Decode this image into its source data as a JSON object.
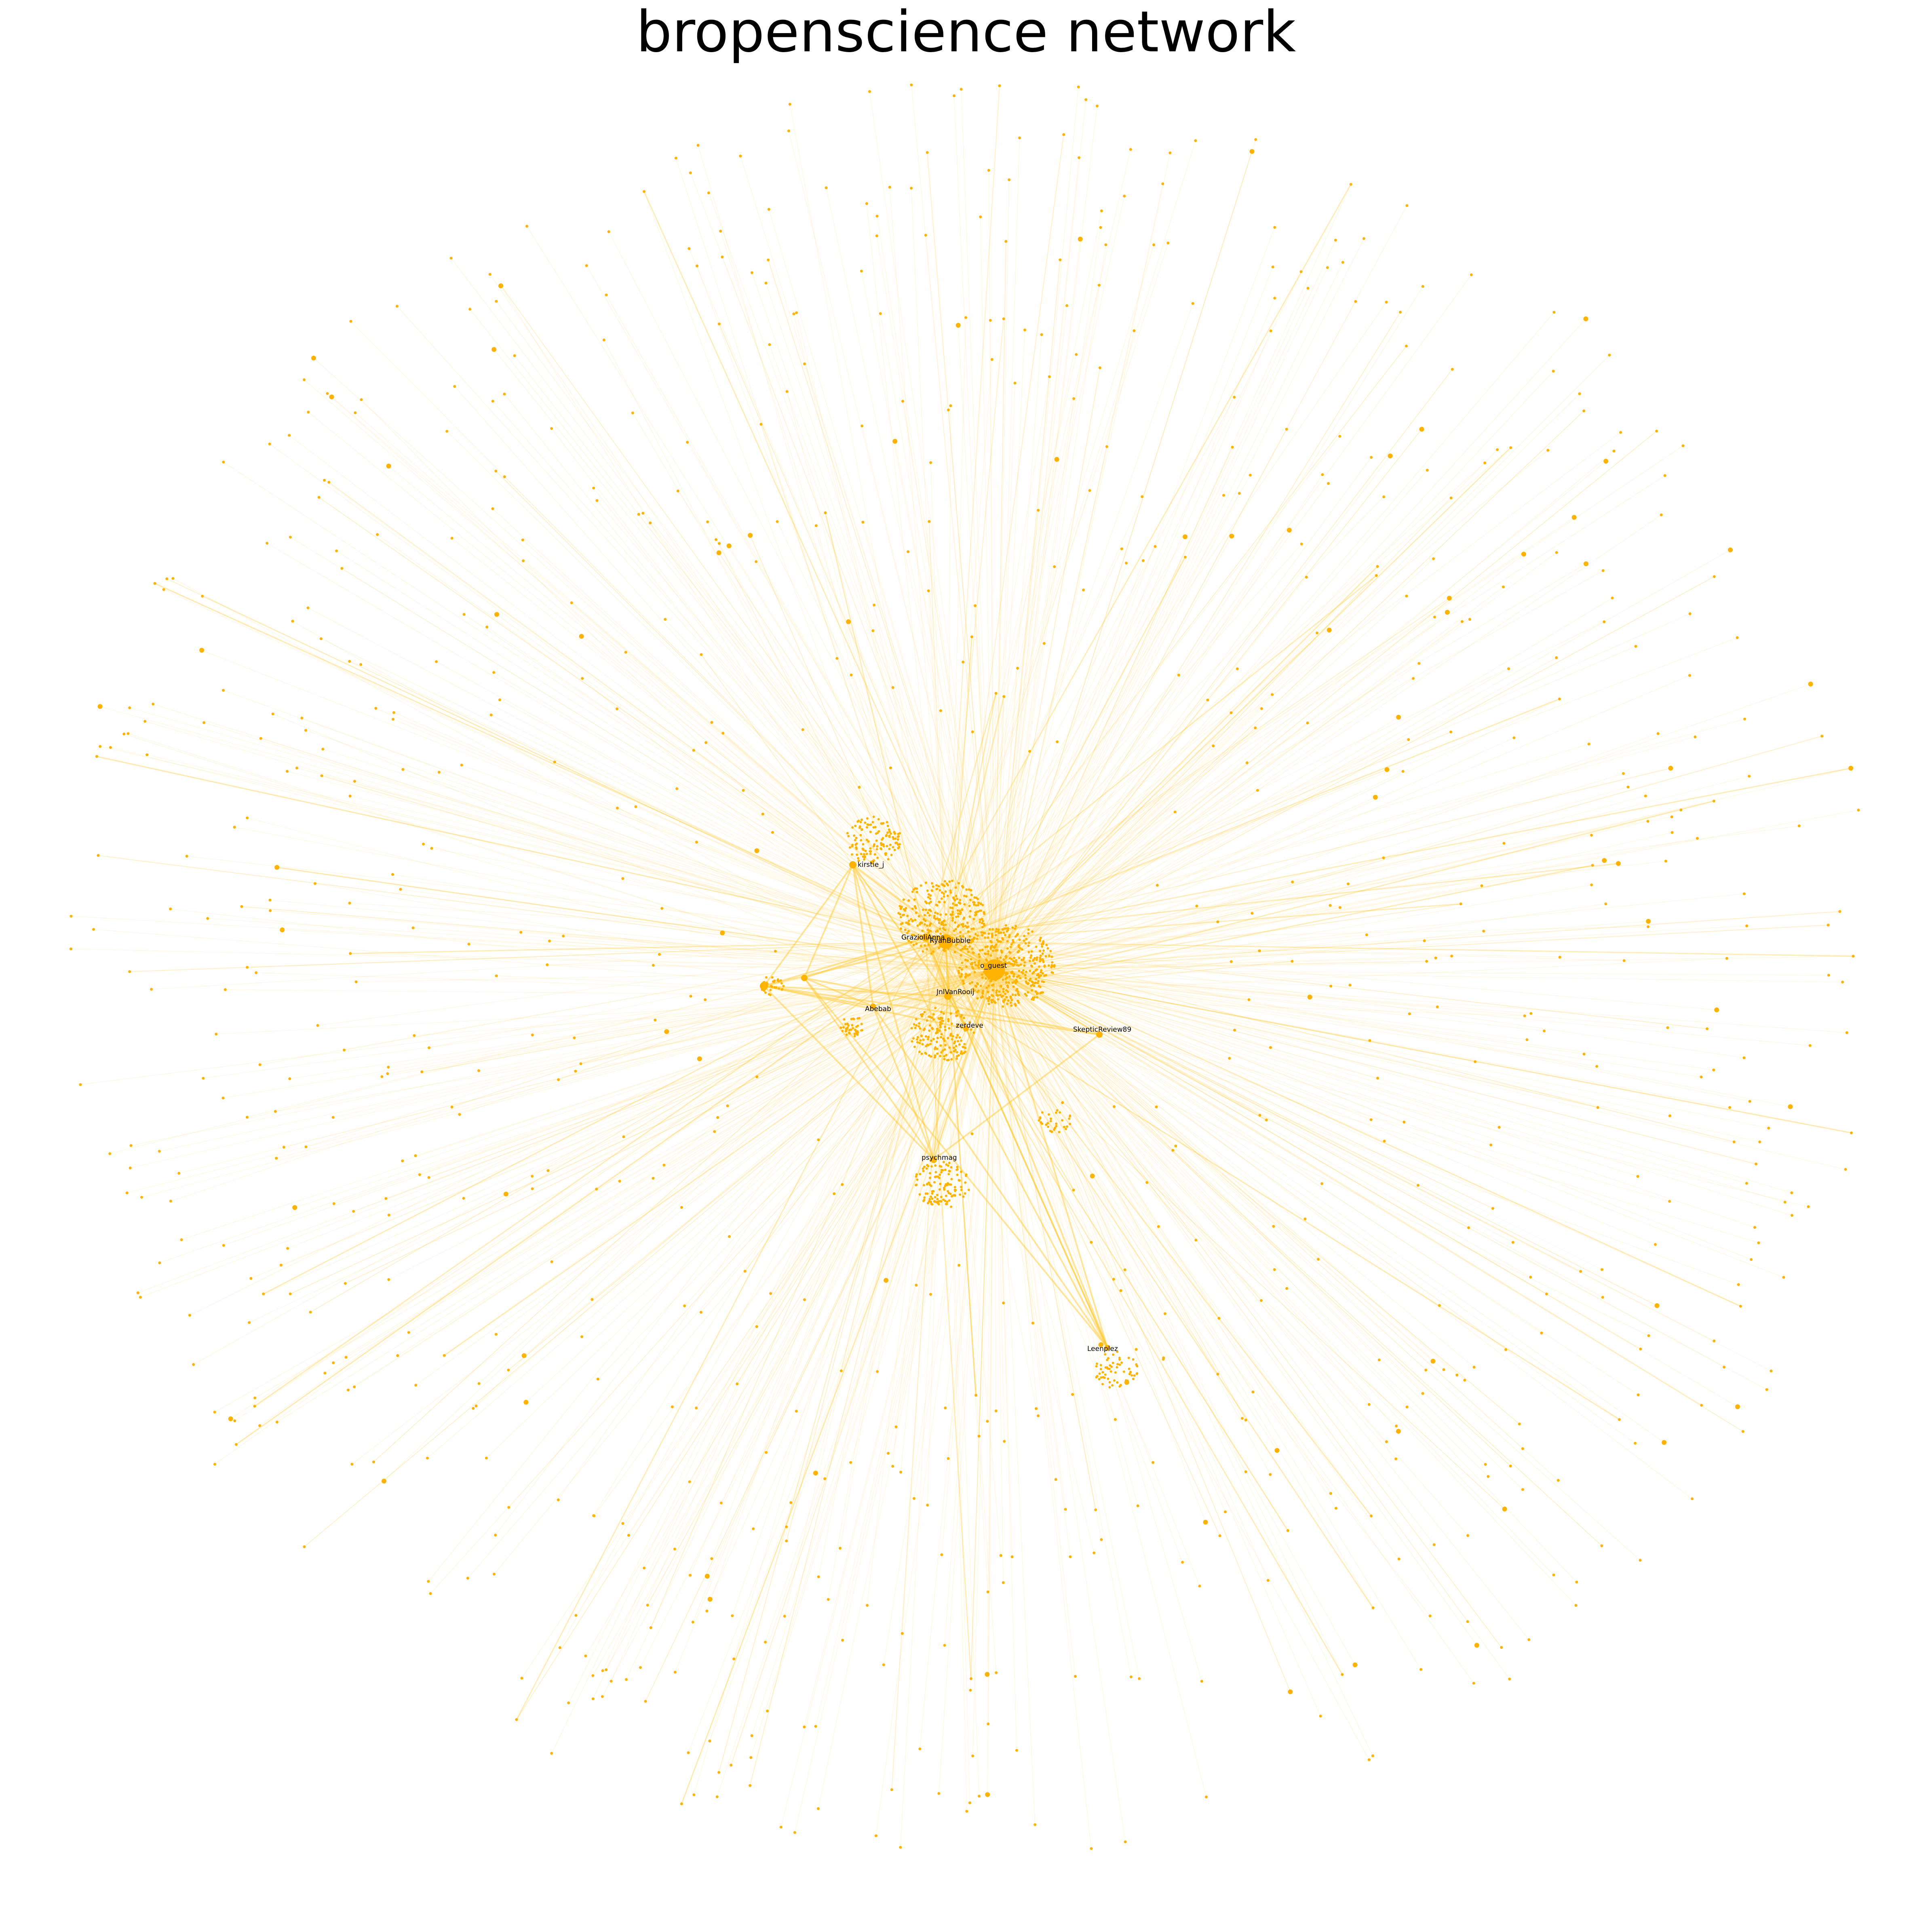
{
  "title": "bropenscience network",
  "colors": {
    "node": "#ffb300",
    "edge": "#ffc933",
    "label": "#000000",
    "background": "#ffffff"
  },
  "labels": {
    "hub_main": "o_guest",
    "hub_2": "RyanBubble",
    "hub_3": "GrazioliAnna",
    "hub_4": "JnlVanRooij",
    "hub_5": "Abebab",
    "hub_6": "zerdeve",
    "hub_7": "kirstie_j",
    "hub_8": "SkepticReview89",
    "hub_9": "psychmag",
    "hub_10": "Leenplez"
  }
}
